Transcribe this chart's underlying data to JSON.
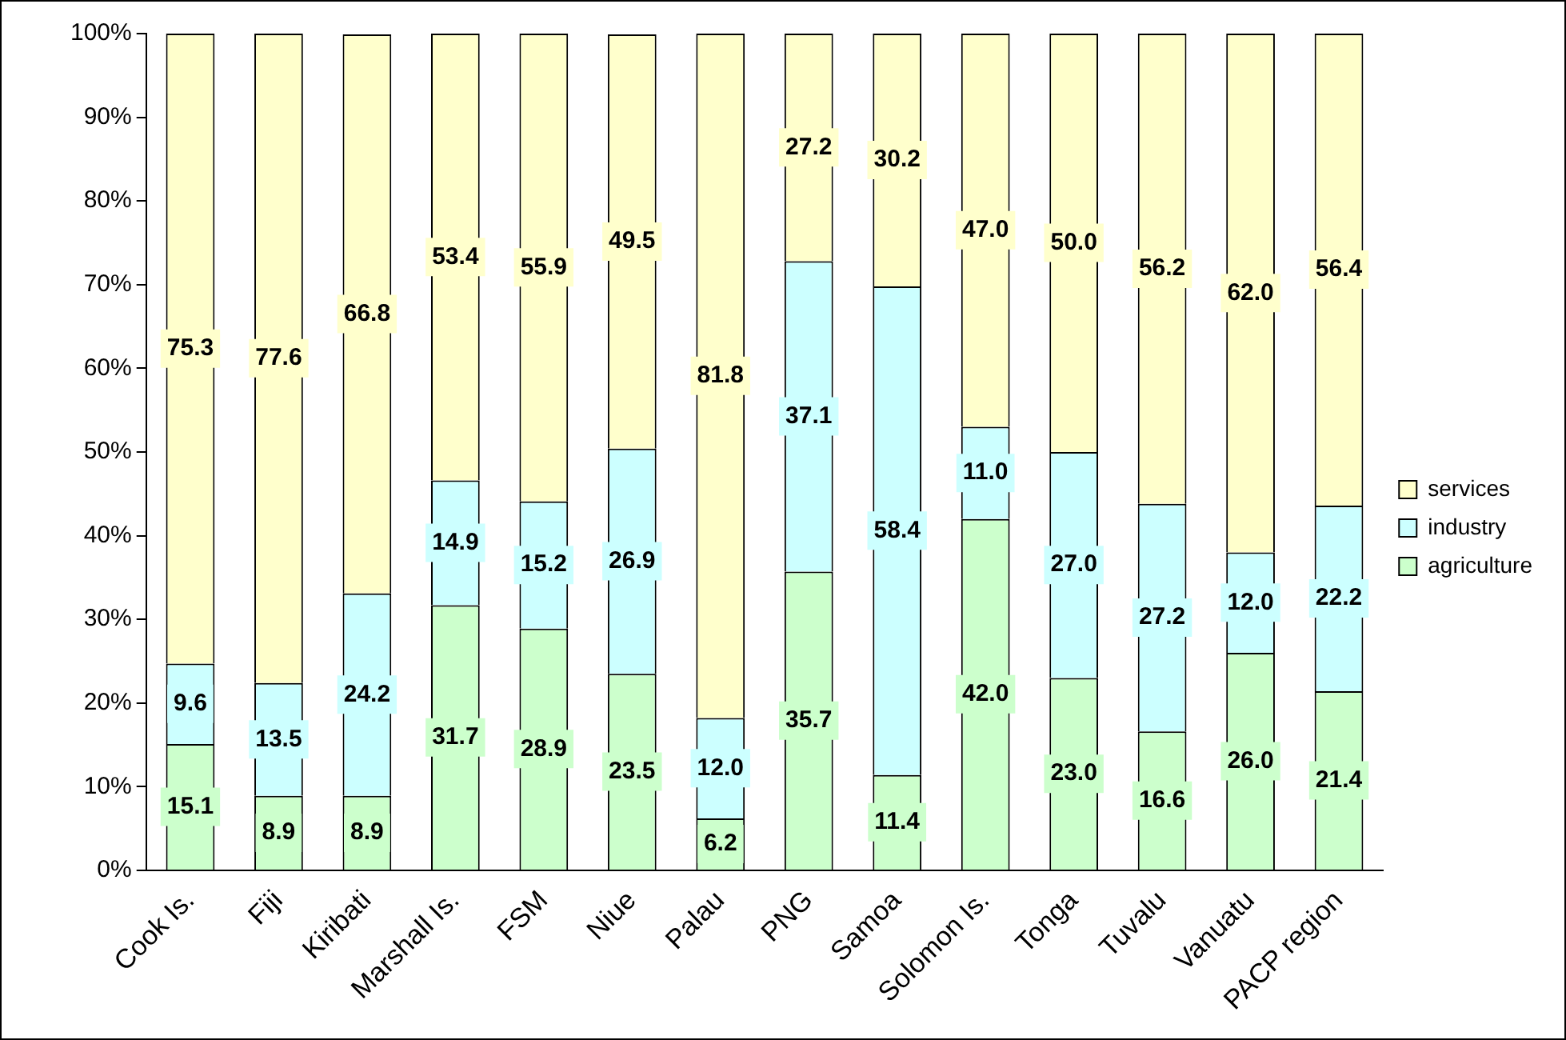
{
  "chart_data": {
    "type": "bar",
    "stacked": true,
    "categories": [
      "Cook Is.",
      "Fiji",
      "Kiribati",
      "Marshall Is.",
      "FSM",
      "Niue",
      "Palau",
      "PNG",
      "Samoa",
      "Solomon Is.",
      "Tonga",
      "Tuvalu",
      "Vanuatu",
      "PACP region"
    ],
    "series": [
      {
        "name": "agriculture",
        "color": "#ccffcc",
        "values": [
          15.1,
          8.9,
          8.9,
          31.7,
          28.9,
          23.5,
          6.2,
          35.7,
          11.4,
          42.0,
          23.0,
          16.6,
          26.0,
          21.4
        ],
        "value_labels": [
          "15.1",
          "8.9",
          "8.9",
          "31.7",
          "28.9",
          "23.5",
          "6.2",
          "35.7",
          "11.4",
          "42.0",
          "23.0",
          "16.6",
          "26.0",
          "21.4"
        ]
      },
      {
        "name": "industry",
        "color": "#ccffff",
        "values": [
          9.6,
          13.5,
          24.2,
          14.9,
          15.2,
          26.9,
          12.0,
          37.1,
          58.4,
          11.0,
          27.0,
          27.2,
          12.0,
          22.2
        ],
        "value_labels": [
          "9.6",
          "13.5",
          "24.2",
          "14.9",
          "15.2",
          "26.9",
          "12.0",
          "37.1",
          "58.4",
          "11.0",
          "27.0",
          "27.2",
          "12.0",
          "22.2"
        ]
      },
      {
        "name": "services",
        "color": "#ffffcc",
        "values": [
          75.3,
          77.6,
          66.8,
          53.4,
          55.9,
          49.5,
          81.8,
          27.2,
          30.2,
          47.0,
          50.0,
          56.2,
          62.0,
          56.4
        ],
        "value_labels": [
          "75.3",
          "77.6",
          "66.8",
          "53.4",
          "55.9",
          "49.5",
          "81.8",
          "27.2",
          "30.2",
          "47.0",
          "50.0",
          "56.2",
          "62.0",
          "56.4"
        ]
      }
    ],
    "ylim": [
      0,
      100
    ],
    "yticks": [
      {
        "value": 0,
        "label": "0%"
      },
      {
        "value": 10,
        "label": "10%"
      },
      {
        "value": 20,
        "label": "20%"
      },
      {
        "value": 30,
        "label": "30%"
      },
      {
        "value": 40,
        "label": "40%"
      },
      {
        "value": 50,
        "label": "50%"
      },
      {
        "value": 60,
        "label": "60%"
      },
      {
        "value": 70,
        "label": "70%"
      },
      {
        "value": 80,
        "label": "80%"
      },
      {
        "value": 90,
        "label": "90%"
      },
      {
        "value": 100,
        "label": "100%"
      }
    ],
    "legend": "right"
  }
}
